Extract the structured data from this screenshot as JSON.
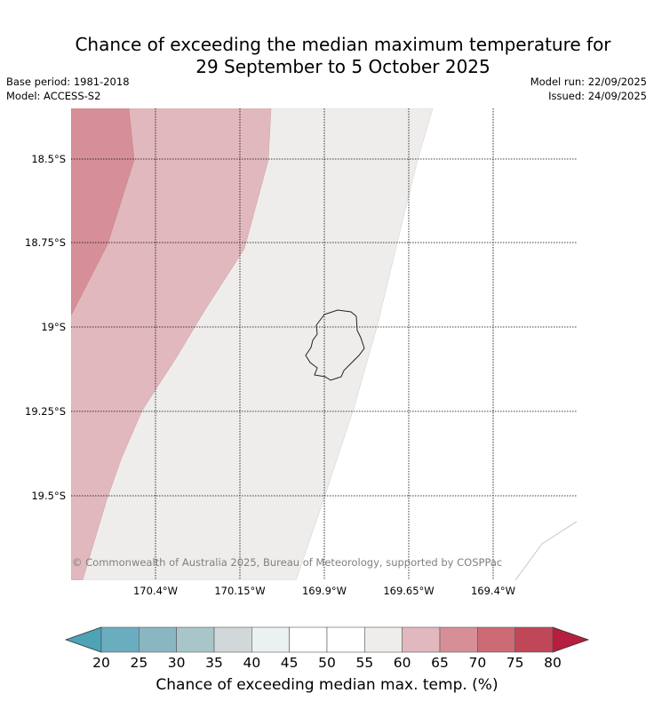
{
  "title": {
    "line1": "Chance of exceeding the median maximum temperature for",
    "line2": "29 September to 5 October 2025"
  },
  "meta": {
    "base_period": "Base period: 1981-2018",
    "model": "Model: ACCESS-S2",
    "model_run": "Model run: 22/09/2025",
    "issued": "Issued: 24/09/2025"
  },
  "map": {
    "lat_labels": [
      "18.5°S",
      "18.75°S",
      "19°S",
      "19.25°S",
      "19.5°S"
    ],
    "lon_labels": [
      "170.4°W",
      "170.15°W",
      "169.9°W",
      "169.65°W",
      "169.4°W"
    ],
    "copyright": "© Commonwealth of Australia 2025, Bureau of Meteorology, supported by COSPPac",
    "zone_colors": {
      "70-75": "#d68f97",
      "60-65": "#e1b8bd",
      "50-55": "#efedeb"
    }
  },
  "colorbar": {
    "ticks": [
      "20",
      "25",
      "30",
      "35",
      "40",
      "45",
      "50",
      "55",
      "60",
      "65",
      "70",
      "75",
      "80"
    ],
    "colors": [
      "#6aadbf",
      "#8ab6c2",
      "#a8c6ca",
      "#d2d8d9",
      "#ebf0f0",
      "#ffffff",
      "#ffffff",
      "#efedeb",
      "#e1b8bd",
      "#d68f97",
      "#cc6b75",
      "#c04758"
    ],
    "under_color": "#4ea3b6",
    "over_color": "#b61f3f",
    "label": "Chance of exceeding median max. temp. (%)"
  }
}
